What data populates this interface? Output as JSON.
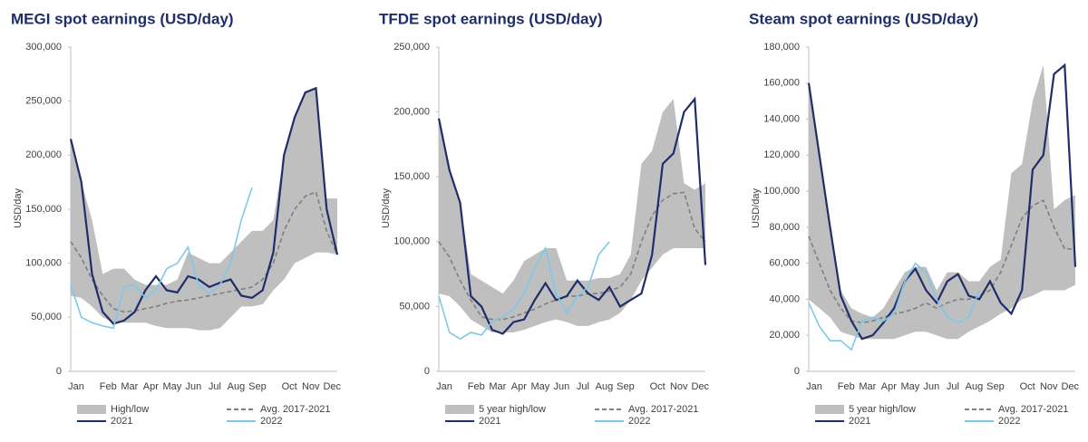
{
  "chart_data": [
    {
      "type": "line",
      "title": "MEGI spot earnings (USD/day)",
      "ylabel": "USD/day",
      "categories": [
        "Jan",
        null,
        null,
        "Feb",
        null,
        "Mar",
        null,
        "Apr",
        null,
        "May",
        null,
        "Jun",
        null,
        "Jul",
        null,
        "Aug",
        null,
        "Sep",
        null,
        null,
        "Oct",
        null,
        "Nov",
        null,
        "Dec",
        null
      ],
      "ylim": [
        0,
        300000
      ],
      "yticks": [
        0,
        {
          "value": 50000,
          "label": "50,000"
        },
        {
          "value": 100000,
          "label": "100,000"
        },
        {
          "value": 150000,
          "label": "150,000"
        },
        {
          "value": 200000,
          "label": "200,000"
        },
        {
          "value": 250000,
          "label": "250,000"
        },
        {
          "value": 300000,
          "label": "300,000"
        }
      ],
      "series": [
        {
          "name": "High/low",
          "color": "#bfbfbf",
          "high": [
            215000,
            175000,
            140000,
            90000,
            95000,
            95000,
            85000,
            80000,
            80000,
            80000,
            85000,
            110000,
            105000,
            100000,
            100000,
            110000,
            120000,
            130000,
            130000,
            140000,
            200000,
            235000,
            258000,
            262000,
            160000,
            160000
          ],
          "low": [
            70000,
            68000,
            60000,
            50000,
            45000,
            45000,
            45000,
            45000,
            42000,
            40000,
            40000,
            40000,
            38000,
            38000,
            40000,
            50000,
            60000,
            60000,
            62000,
            75000,
            85000,
            100000,
            105000,
            110000,
            110000,
            108000
          ]
        },
        {
          "name": "Avg. 2017-2021",
          "color": "#7f7f7f",
          "dashed": true,
          "values": [
            120000,
            105000,
            85000,
            70000,
            58000,
            55000,
            56000,
            58000,
            60000,
            63000,
            65000,
            66000,
            68000,
            70000,
            72000,
            74000,
            76000,
            78000,
            85000,
            100000,
            130000,
            150000,
            162000,
            166000,
            130000,
            108000
          ]
        },
        {
          "name": "2021",
          "color": "#1f2d6b",
          "values": [
            215000,
            175000,
            90000,
            55000,
            44000,
            47000,
            55000,
            75000,
            88000,
            75000,
            73000,
            88000,
            85000,
            78000,
            82000,
            85000,
            70000,
            68000,
            75000,
            110000,
            200000,
            235000,
            258000,
            262000,
            150000,
            108000
          ]
        },
        {
          "name": "2022",
          "color": "#7ec8e8",
          "values": [
            80000,
            50000,
            45000,
            42000,
            40000,
            78000,
            80000,
            68000,
            75000,
            95000,
            100000,
            115000,
            80000,
            72000,
            80000,
            100000,
            140000,
            170000,
            null,
            null,
            null,
            null,
            null,
            null,
            null,
            null
          ]
        }
      ]
    },
    {
      "type": "line",
      "title": "TFDE spot earnings (USD/day)",
      "ylabel": "USD/day",
      "categories": [
        "Jan",
        null,
        null,
        "Feb",
        null,
        "Mar",
        null,
        "Apr",
        null,
        "May",
        null,
        "Jun",
        null,
        "Jul",
        null,
        "Aug",
        null,
        "Sep",
        null,
        null,
        "Oct",
        null,
        "Nov",
        null,
        "Dec",
        null
      ],
      "ylim": [
        0,
        250000
      ],
      "yticks": [
        0,
        {
          "value": 50000,
          "label": "50,000"
        },
        {
          "value": 100000,
          "label": "100,000"
        },
        {
          "value": 150000,
          "label": "150,000"
        },
        {
          "value": 200000,
          "label": "200,000"
        },
        {
          "value": 250000,
          "label": "250,000"
        }
      ],
      "series": [
        {
          "name": "5 year high/low",
          "color": "#bfbfbf",
          "high": [
            195000,
            155000,
            130000,
            75000,
            70000,
            65000,
            60000,
            70000,
            85000,
            90000,
            95000,
            95000,
            70000,
            70000,
            70000,
            72000,
            72000,
            75000,
            90000,
            160000,
            170000,
            200000,
            210000,
            145000,
            140000,
            145000
          ],
          "low": [
            60000,
            58000,
            50000,
            40000,
            35000,
            30000,
            30000,
            30000,
            32000,
            35000,
            38000,
            40000,
            38000,
            35000,
            35000,
            38000,
            40000,
            45000,
            55000,
            70000,
            80000,
            90000,
            95000,
            95000,
            95000,
            95000
          ]
        },
        {
          "name": "Avg. 2017-2021",
          "color": "#7f7f7f",
          "dashed": true,
          "values": [
            100000,
            88000,
            70000,
            55000,
            42000,
            40000,
            40000,
            42000,
            45000,
            48000,
            52000,
            55000,
            58000,
            58000,
            60000,
            60000,
            62000,
            65000,
            75000,
            100000,
            120000,
            132000,
            137000,
            138000,
            110000,
            100000
          ]
        },
        {
          "name": "2021",
          "color": "#1f2d6b",
          "values": [
            195000,
            155000,
            130000,
            58000,
            50000,
            32000,
            29000,
            38000,
            40000,
            55000,
            68000,
            55000,
            58000,
            70000,
            60000,
            55000,
            65000,
            50000,
            55000,
            60000,
            90000,
            160000,
            168000,
            200000,
            210000,
            82000
          ]
        },
        {
          "name": "2022",
          "color": "#7ec8e8",
          "values": [
            58000,
            30000,
            25000,
            30000,
            28000,
            38000,
            42000,
            48000,
            60000,
            80000,
            95000,
            60000,
            45000,
            58000,
            65000,
            90000,
            100000,
            null,
            null,
            null,
            null,
            null,
            null,
            null,
            null,
            null
          ]
        }
      ]
    },
    {
      "type": "line",
      "title": "Steam spot earnings (USD/day)",
      "ylabel": "USD/day",
      "categories": [
        "Jan",
        null,
        null,
        "Feb",
        null,
        "Mar",
        null,
        "Apr",
        null,
        "May",
        null,
        "Jun",
        null,
        "Jul",
        null,
        "Aug",
        null,
        "Sep",
        null,
        null,
        "Oct",
        null,
        "Nov",
        null,
        "Dec",
        null
      ],
      "ylim": [
        0,
        180000
      ],
      "yticks": [
        0,
        {
          "value": 20000,
          "label": "20,000"
        },
        {
          "value": 40000,
          "label": "40,000"
        },
        {
          "value": 60000,
          "label": "60,000"
        },
        {
          "value": 80000,
          "label": "80,000"
        },
        {
          "value": 100000,
          "label": "100,000"
        },
        {
          "value": 120000,
          "label": "120,000"
        },
        {
          "value": 140000,
          "label": "140,000"
        },
        {
          "value": 160000,
          "label": "160,000"
        },
        {
          "value": 180000,
          "label": "180,000"
        }
      ],
      "series": [
        {
          "name": "5 year high/low",
          "color": "#bfbfbf",
          "high": [
            160000,
            120000,
            80000,
            45000,
            35000,
            32000,
            30000,
            35000,
            45000,
            55000,
            58000,
            58000,
            45000,
            55000,
            55000,
            50000,
            50000,
            58000,
            62000,
            110000,
            115000,
            150000,
            170000,
            90000,
            95000,
            98000
          ],
          "low": [
            40000,
            35000,
            30000,
            22000,
            20000,
            18000,
            18000,
            18000,
            18000,
            20000,
            22000,
            22000,
            20000,
            18000,
            18000,
            22000,
            25000,
            28000,
            32000,
            35000,
            40000,
            42000,
            45000,
            45000,
            45000,
            48000
          ]
        },
        {
          "name": "Avg. 2017-2021",
          "color": "#7f7f7f",
          "dashed": true,
          "values": [
            75000,
            60000,
            45000,
            35000,
            28000,
            27000,
            28000,
            30000,
            32000,
            33000,
            35000,
            38000,
            35000,
            38000,
            40000,
            40000,
            42000,
            45000,
            55000,
            70000,
            85000,
            92000,
            95000,
            80000,
            68000,
            68000
          ]
        },
        {
          "name": "2021",
          "color": "#1f2d6b",
          "values": [
            160000,
            120000,
            80000,
            42000,
            28000,
            18000,
            20000,
            27000,
            35000,
            50000,
            57000,
            45000,
            38000,
            50000,
            54000,
            42000,
            40000,
            50000,
            38000,
            32000,
            45000,
            112000,
            120000,
            165000,
            170000,
            58000
          ]
        },
        {
          "name": "2022",
          "color": "#7ec8e8",
          "values": [
            38000,
            25000,
            17000,
            17000,
            12000,
            28000,
            30000,
            28000,
            32000,
            50000,
            60000,
            55000,
            40000,
            30000,
            27000,
            30000,
            45000,
            null,
            null,
            null,
            null,
            null,
            null,
            null,
            null,
            null
          ]
        }
      ]
    }
  ]
}
